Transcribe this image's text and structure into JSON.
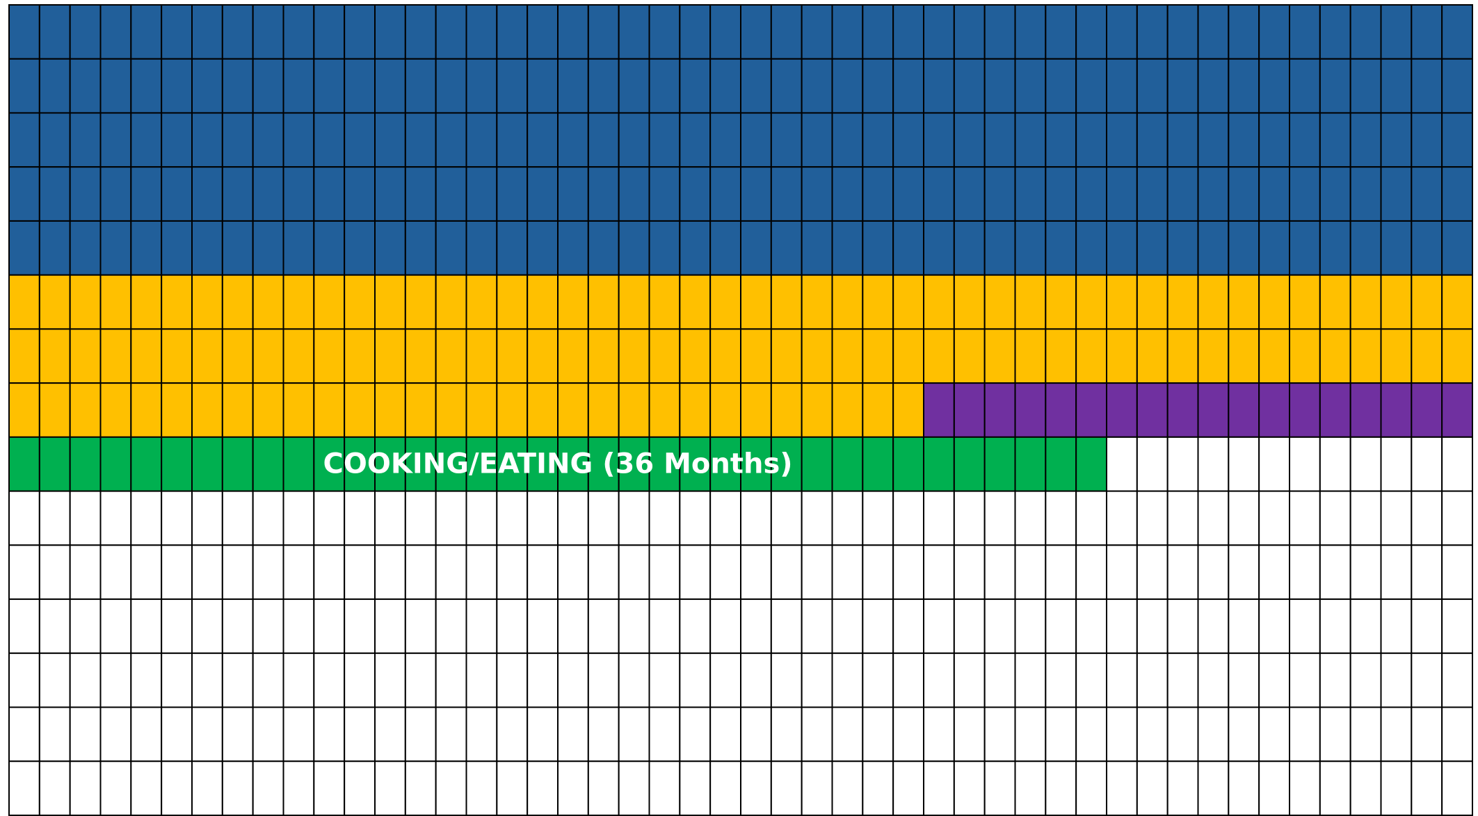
{
  "chart_data": {
    "type": "waffle",
    "rows": 15,
    "columns": 48,
    "values": [
      240,
      126,
      18,
      36
    ],
    "colors": [
      "#215f9a",
      "#ffc000",
      "#7030a0",
      "#00b050"
    ],
    "value_labels": [
      null,
      null,
      null,
      "COOKING/EATING (36 Months)"
    ],
    "empty_color": "#ffffff"
  }
}
